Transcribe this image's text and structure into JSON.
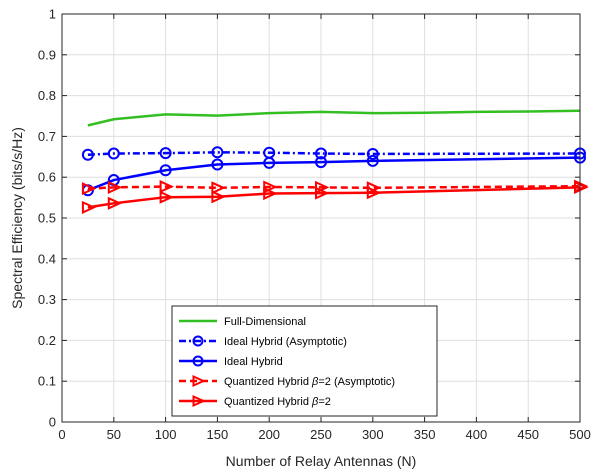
{
  "chart_data": {
    "type": "line",
    "xlabel": "Number of Relay Antennas (N)",
    "ylabel": "Spectral Efficiency (bits/s/Hz)",
    "xlim": [
      0,
      500
    ],
    "ylim": [
      0,
      1
    ],
    "xticks": [
      0,
      50,
      100,
      150,
      200,
      250,
      300,
      350,
      400,
      450,
      500
    ],
    "yticks": [
      0,
      0.1,
      0.2,
      0.3,
      0.4,
      0.5,
      0.6,
      0.7,
      0.8,
      0.9,
      1
    ],
    "xtick_labels": [
      "0",
      "50",
      "100",
      "150",
      "200",
      "250",
      "300",
      "350",
      "400",
      "450",
      "500"
    ],
    "ytick_labels": [
      "0",
      "0.1",
      "0.2",
      "0.3",
      "0.4",
      "0.5",
      "0.6",
      "0.7",
      "0.8",
      "0.9",
      "1"
    ],
    "grid": true,
    "legend_position": "bottom-center",
    "series": [
      {
        "name": "Full-Dimensional",
        "color": "#33bf22",
        "style": "solid",
        "marker": "none",
        "x": [
          25,
          50,
          100,
          150,
          200,
          250,
          300,
          350,
          400,
          450,
          500
        ],
        "y": [
          0.727,
          0.742,
          0.754,
          0.751,
          0.757,
          0.76,
          0.757,
          0.758,
          0.76,
          0.761,
          0.763
        ]
      },
      {
        "name": "Ideal Hybrid (Asymptotic)",
        "color": "#0000ff",
        "style": "dashdot",
        "marker": "circle",
        "x": [
          25,
          50,
          100,
          150,
          200,
          250,
          300,
          500
        ],
        "y": [
          0.655,
          0.658,
          0.659,
          0.661,
          0.66,
          0.658,
          0.657,
          0.658
        ]
      },
      {
        "name": "Ideal Hybrid",
        "color": "#0000ff",
        "style": "solid",
        "marker": "circle",
        "x": [
          25,
          50,
          100,
          150,
          200,
          250,
          300,
          500
        ],
        "y": [
          0.568,
          0.593,
          0.617,
          0.631,
          0.635,
          0.637,
          0.64,
          0.648
        ]
      },
      {
        "name": "Quantized Hybrid β=2 (Asymptotic)",
        "label_prefix": "Quantized Hybrid ",
        "label_symbol": "β",
        "label_suffix": "=2 (Asymptotic)",
        "color": "#ff0000",
        "style": "dashed",
        "marker": "triangle-right",
        "x": [
          25,
          50,
          100,
          150,
          200,
          250,
          300,
          500
        ],
        "y": [
          0.572,
          0.575,
          0.577,
          0.574,
          0.576,
          0.575,
          0.574,
          0.578
        ]
      },
      {
        "name": "Quantized Hybrid β=2",
        "label_prefix": "Quantized Hybrid ",
        "label_symbol": "β",
        "label_suffix": "=2",
        "color": "#ff0000",
        "style": "solid",
        "marker": "triangle-right",
        "x": [
          25,
          50,
          100,
          150,
          200,
          250,
          300,
          500
        ],
        "y": [
          0.526,
          0.536,
          0.551,
          0.552,
          0.56,
          0.561,
          0.562,
          0.575
        ]
      }
    ]
  }
}
